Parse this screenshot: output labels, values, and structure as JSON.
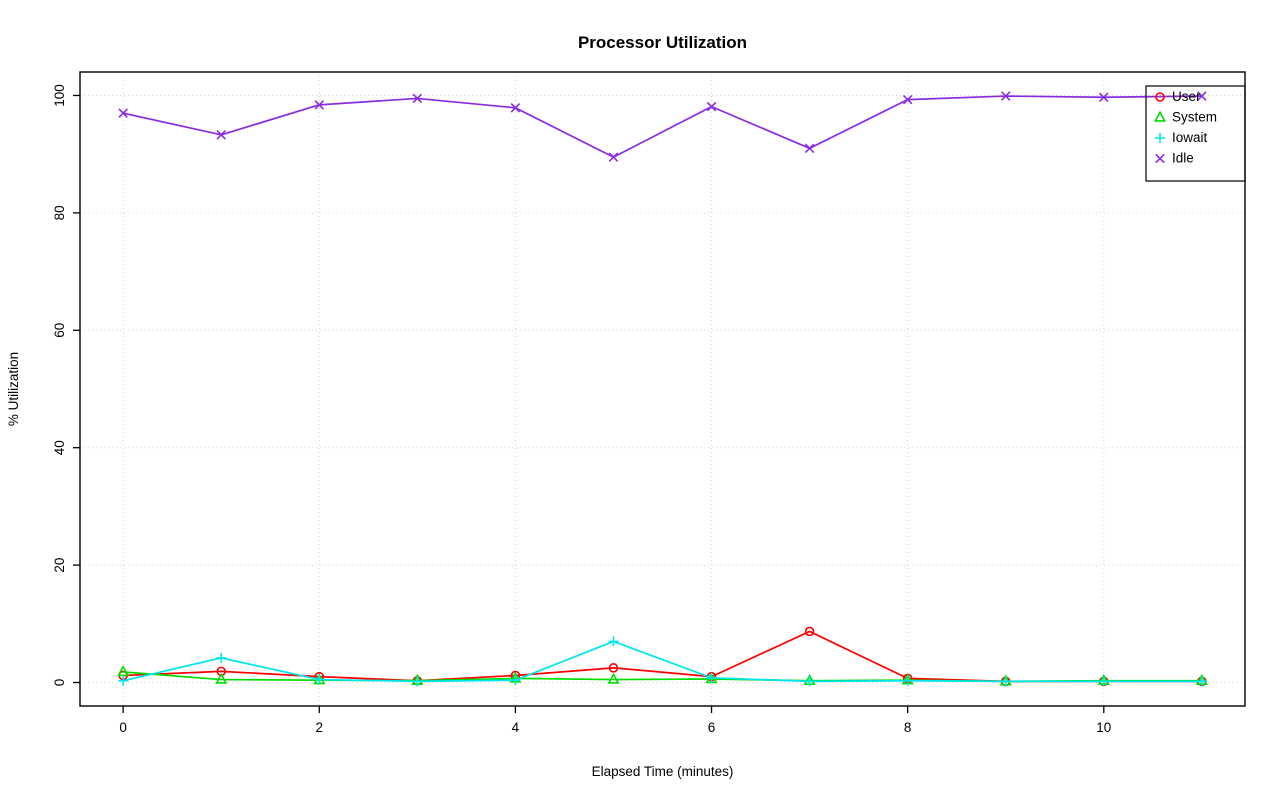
{
  "chart_data": {
    "type": "line",
    "title": "Processor Utilization",
    "xlabel": "Elapsed Time (minutes)",
    "ylabel": "% Utilization",
    "xlim": [
      0,
      11
    ],
    "ylim": [
      0,
      100
    ],
    "xticks": [
      0,
      2,
      4,
      6,
      8,
      10
    ],
    "yticks": [
      0,
      20,
      40,
      60,
      80,
      100
    ],
    "grid": {
      "on": true,
      "style": "dotted",
      "color": "#d3d3d3"
    },
    "legend_position": "top-right",
    "x": [
      0,
      1,
      2,
      3,
      4,
      5,
      6,
      7,
      8,
      9,
      10,
      11
    ],
    "series": [
      {
        "name": "User",
        "color": "#ff0000",
        "marker": "circle",
        "values": [
          1.2,
          1.9,
          1.0,
          0.3,
          1.2,
          2.5,
          1.0,
          8.7,
          0.7,
          0.2,
          0.2,
          0.2
        ]
      },
      {
        "name": "System",
        "color": "#00dd00",
        "marker": "triangle",
        "values": [
          1.8,
          0.5,
          0.4,
          0.3,
          0.7,
          0.5,
          0.6,
          0.3,
          0.4,
          0.2,
          0.3,
          0.3
        ]
      },
      {
        "name": "Iowait",
        "color": "#00e5ee",
        "marker": "plus",
        "values": [
          0.3,
          4.2,
          0.5,
          0.2,
          0.4,
          7.0,
          0.8,
          0.2,
          0.3,
          0.2,
          0.2,
          0.2
        ]
      },
      {
        "name": "Idle",
        "color": "#8a2be2",
        "marker": "x",
        "values": [
          97.0,
          93.3,
          98.4,
          99.5,
          97.9,
          89.5,
          98.1,
          91.0,
          99.3,
          99.9,
          99.7,
          99.9
        ]
      }
    ],
    "colors": {
      "axis": "#000000",
      "background": "#ffffff",
      "plot_border": "#000000"
    }
  }
}
